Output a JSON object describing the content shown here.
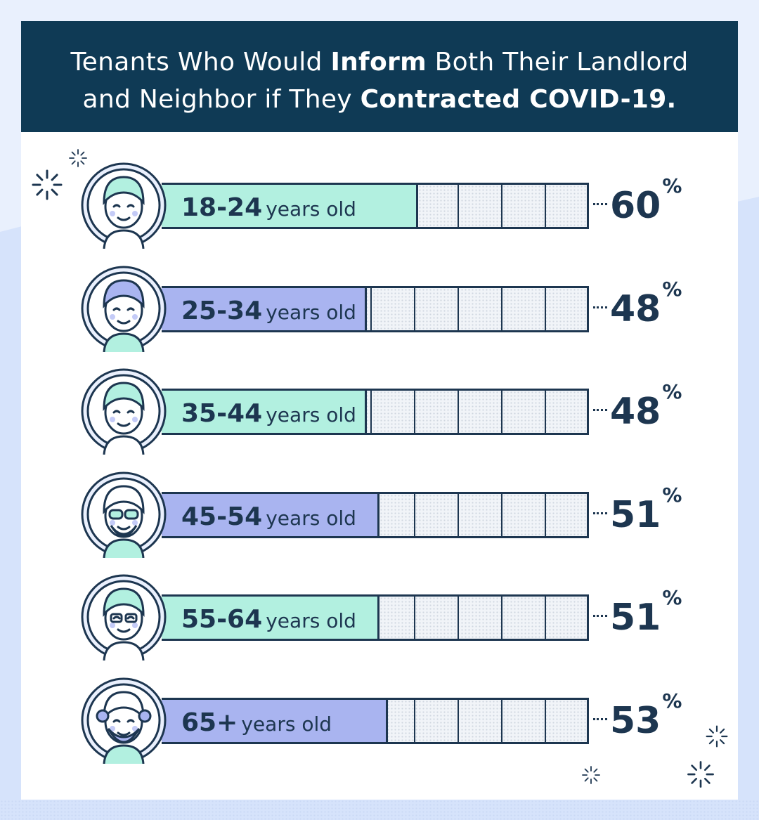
{
  "title": {
    "line1": {
      "pre": "Tenants Who Would ",
      "bold": "Inform",
      "post": " Both Their Landlord"
    },
    "line2": {
      "pre": "and Neighbor if They ",
      "bold": "Contracted COVID-19."
    }
  },
  "colors": {
    "navy": "#0f3a55",
    "text": "#1d3650",
    "mint": "#b2f0e0",
    "lavender": "#a9b4f0"
  },
  "chart_data": {
    "type": "bar",
    "title": "Tenants Who Would Inform Both Their Landlord and Neighbor if They Contracted COVID-19.",
    "categories": [
      "18-24 years old",
      "25-34 years old",
      "35-44 years old",
      "45-54 years old",
      "55-64 years old",
      "65+ years old"
    ],
    "values": [
      60,
      48,
      48,
      51,
      51,
      53
    ],
    "xlim": [
      0,
      100
    ],
    "value_suffix": "%",
    "orientation": "horizontal"
  },
  "rows": [
    {
      "age": "18-24",
      "suffix": "years old",
      "value": 60,
      "pct": "60",
      "sign": "%",
      "color": "#b2f0e0",
      "avatar": "young-man-avatar-icon"
    },
    {
      "age": "25-34",
      "suffix": "years old",
      "value": 48,
      "pct": "48",
      "sign": "%",
      "color": "#a9b4f0",
      "avatar": "curly-hair-woman-avatar-icon"
    },
    {
      "age": "35-44",
      "suffix": "years old",
      "value": 48,
      "pct": "48",
      "sign": "%",
      "color": "#b2f0e0",
      "avatar": "long-hair-woman-avatar-icon"
    },
    {
      "age": "45-54",
      "suffix": "years old",
      "value": 51,
      "pct": "51",
      "sign": "%",
      "color": "#a9b4f0",
      "avatar": "bald-bearded-man-avatar-icon"
    },
    {
      "age": "55-64",
      "suffix": "years old",
      "value": 51,
      "pct": "51",
      "sign": "%",
      "color": "#b2f0e0",
      "avatar": "glasses-woman-avatar-icon"
    },
    {
      "age": "65+",
      "suffix": "years old",
      "value": 53,
      "pct": "53",
      "sign": "%",
      "color": "#a9b4f0",
      "avatar": "senior-man-avatar-icon"
    }
  ]
}
